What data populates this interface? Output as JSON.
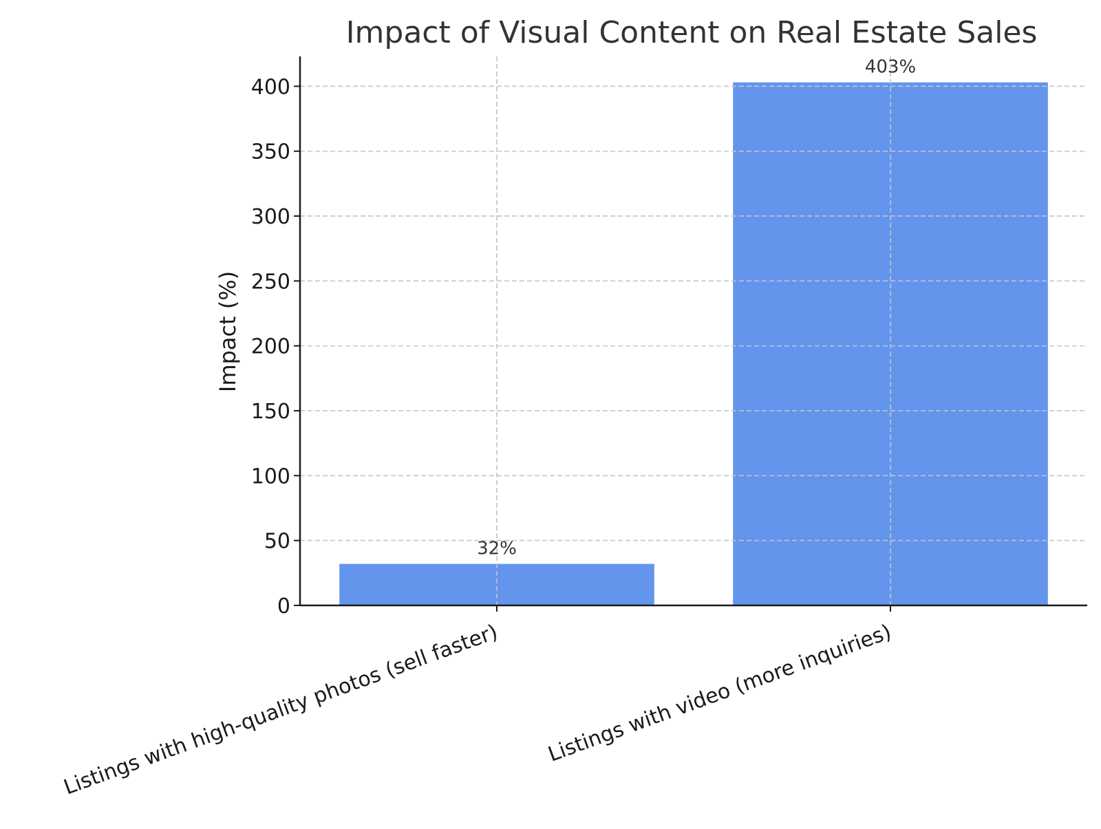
{
  "chart_data": {
    "type": "bar",
    "title": "Impact of Visual Content on Real Estate Sales",
    "xlabel": "",
    "ylabel": "Impact (%)",
    "categories": [
      "Listings with high-quality photos (sell faster)",
      "Listings with video (more inquiries)"
    ],
    "values": [
      32,
      403
    ],
    "data_labels": [
      "32%",
      "403%"
    ],
    "ylim": [
      0,
      423
    ],
    "yticks": [
      0,
      50,
      100,
      150,
      200,
      250,
      300,
      350,
      400
    ],
    "grid": true,
    "colors": {
      "bar": "#6495ED",
      "text": "#333333",
      "axis": "#1a1a1a"
    }
  }
}
